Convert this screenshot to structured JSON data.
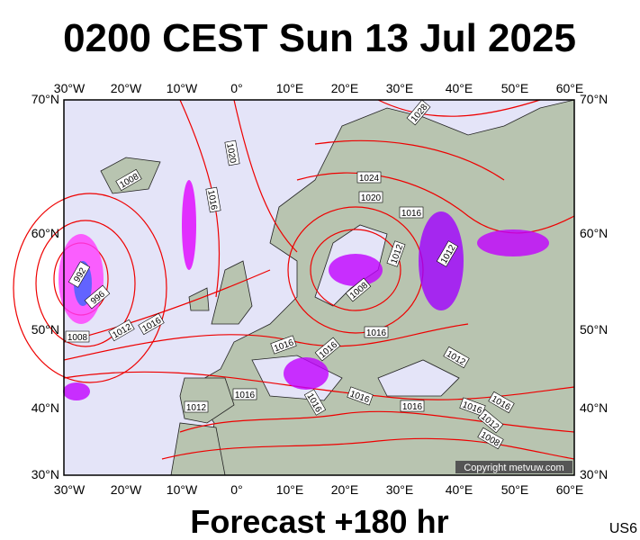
{
  "header": {
    "title": "0200 CEST Sun 13 Jul 2025"
  },
  "axes": {
    "lon": [
      "30°W",
      "20°W",
      "10°W",
      "0°",
      "10°E",
      "20°E",
      "30°E",
      "40°E",
      "50°E",
      "60°E"
    ],
    "lat": [
      "70°N",
      "60°N",
      "50°N",
      "40°N",
      "30°N"
    ]
  },
  "isobar_labels": [
    "1028",
    "1020",
    "1008",
    "1016",
    "1024",
    "1020",
    "1016",
    "1012",
    "1012",
    "992",
    "996",
    "1008",
    "1012",
    "1016",
    "1008",
    "1016",
    "1016",
    "1016",
    "1016",
    "1016",
    "1016",
    "1012",
    "1016",
    "1012",
    "1016",
    "1016",
    "1012",
    "1008"
  ],
  "copyright": "Copyright metvuw.com",
  "footer": {
    "forecast": "Forecast +180 hr",
    "code": "US6"
  }
}
